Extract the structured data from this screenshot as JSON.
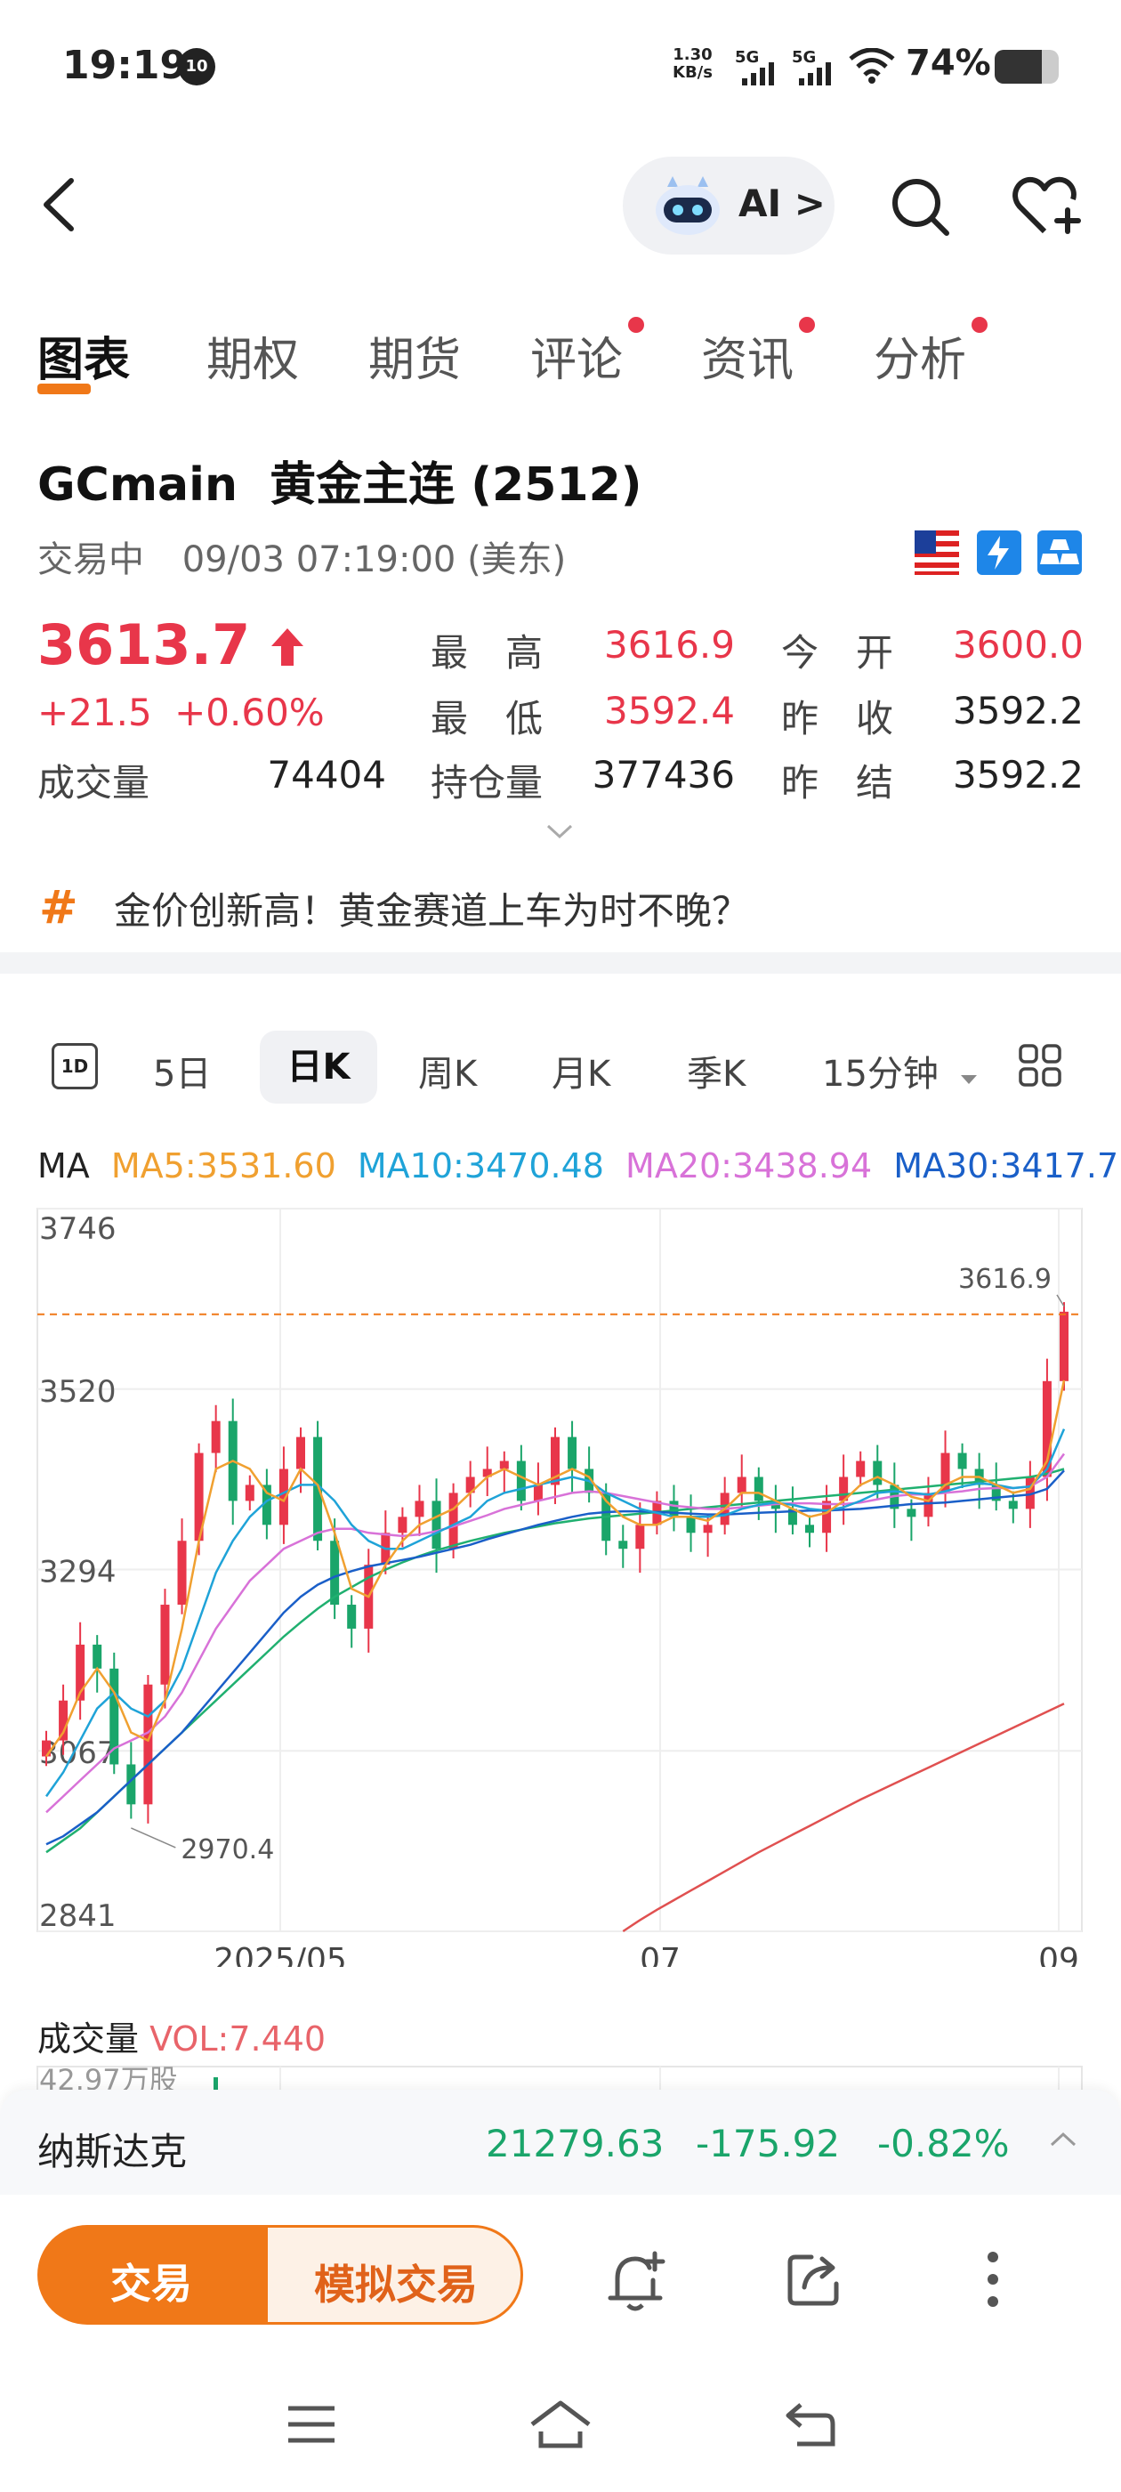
{
  "status_bar": {
    "time": "19:19",
    "notification_count": "10",
    "net_speed_value": "1.30",
    "net_speed_unit": "KB/s",
    "signal1": "5G",
    "signal2": "5G",
    "battery": "74%",
    "battery_level": 0.74
  },
  "header": {
    "ai_label": "AI >"
  },
  "tabs": [
    {
      "label": "图表",
      "active": true,
      "dot": false
    },
    {
      "label": "期权",
      "active": false,
      "dot": false
    },
    {
      "label": "期货",
      "active": false,
      "dot": false
    },
    {
      "label": "评论",
      "active": false,
      "dot": true
    },
    {
      "label": "资讯",
      "active": false,
      "dot": true
    },
    {
      "label": "分析",
      "active": false,
      "dot": true
    }
  ],
  "quote": {
    "title": "GCmain  黄金主连 (2512)",
    "status": "交易中",
    "datetime": "09/03 07:19:00 (美东)",
    "price": "3613.7",
    "change": "+21.5",
    "change_pct": "+0.60%",
    "volume_label": "成交量",
    "volume": "74404",
    "high_label": "最　高",
    "high": "3616.9",
    "low_label": "最　低",
    "low": "3592.4",
    "oi_label": "持仓量",
    "oi": "377436",
    "open_label": "今　开",
    "open": "3600.0",
    "prev_close_label": "昨　收",
    "prev_close": "3592.2",
    "prev_settle_label": "昨　结",
    "prev_settle": "3592.2"
  },
  "news": {
    "text": "金价创新高！黄金赛道上车为时不晚？"
  },
  "periods": [
    "5日",
    "日K",
    "周K",
    "月K",
    "季K",
    "15分钟"
  ],
  "active_period": "日K",
  "ma": {
    "label": "MA",
    "ma5": "MA5:3531.60",
    "ma10": "MA10:3470.48",
    "ma20": "MA20:3438.94",
    "ma30": "MA30:3417.7..."
  },
  "colors": {
    "up": "#e8364a",
    "down": "#1aa56a",
    "accent": "#f07818",
    "ma5": "#f0a030",
    "ma10": "#1fa3d8",
    "ma20": "#d872d8",
    "ma30": "#1a5fc8",
    "ma60": "#20b070",
    "ma120": "#e05050"
  },
  "chart_data": {
    "type": "candlestick",
    "y_ticks": [
      "3746",
      "3520",
      "3294",
      "3067",
      "2841"
    ],
    "x_ticks": [
      "2025/05",
      "07",
      "09"
    ],
    "ylim": [
      2841,
      3746
    ],
    "high_marker": "3616.9",
    "low_marker": "2970.4",
    "current_price": 3613.7,
    "close_path": [
      3080,
      3130,
      3200,
      3170,
      3050,
      3000,
      3150,
      3250,
      3330,
      3440,
      3480,
      3380,
      3400,
      3350,
      3420,
      3460,
      3330,
      3250,
      3220,
      3300,
      3340,
      3360,
      3380,
      3320,
      3390,
      3410,
      3420,
      3430,
      3380,
      3400,
      3460,
      3420,
      3390,
      3330,
      3320,
      3350,
      3380,
      3360,
      3340,
      3350,
      3390,
      3410,
      3380,
      3370,
      3350,
      3340,
      3380,
      3410,
      3430,
      3400,
      3370,
      3360,
      3390,
      3440,
      3420,
      3400,
      3380,
      3370,
      3410,
      3530,
      3616.9
    ],
    "ma_lines": {
      "ma5": [
        3060,
        3090,
        3140,
        3170,
        3140,
        3090,
        3080,
        3130,
        3220,
        3330,
        3420,
        3430,
        3420,
        3390,
        3380,
        3420,
        3400,
        3340,
        3270,
        3260,
        3300,
        3330,
        3350,
        3360,
        3370,
        3390,
        3410,
        3420,
        3410,
        3400,
        3410,
        3420,
        3410,
        3380,
        3360,
        3350,
        3350,
        3360,
        3360,
        3355,
        3370,
        3390,
        3390,
        3380,
        3370,
        3360,
        3365,
        3380,
        3400,
        3410,
        3400,
        3385,
        3380,
        3400,
        3410,
        3410,
        3400,
        3390,
        3395,
        3430,
        3531
      ],
      "ma10": [
        3010,
        3040,
        3080,
        3120,
        3140,
        3120,
        3110,
        3130,
        3170,
        3230,
        3290,
        3330,
        3360,
        3380,
        3390,
        3400,
        3400,
        3380,
        3350,
        3330,
        3320,
        3320,
        3330,
        3340,
        3350,
        3360,
        3380,
        3390,
        3395,
        3400,
        3405,
        3410,
        3405,
        3390,
        3380,
        3370,
        3365,
        3360,
        3360,
        3360,
        3362,
        3370,
        3375,
        3378,
        3375,
        3370,
        3368,
        3372,
        3380,
        3390,
        3392,
        3390,
        3388,
        3392,
        3398,
        3402,
        3400,
        3396,
        3398,
        3420,
        3470
      ],
      "ma20": [
        2990,
        3010,
        3030,
        3050,
        3070,
        3080,
        3090,
        3110,
        3140,
        3180,
        3220,
        3250,
        3280,
        3300,
        3320,
        3330,
        3340,
        3345,
        3345,
        3340,
        3338,
        3336,
        3338,
        3342,
        3348,
        3355,
        3362,
        3370,
        3375,
        3380,
        3385,
        3390,
        3392,
        3390,
        3386,
        3382,
        3378,
        3374,
        3372,
        3370,
        3370,
        3372,
        3374,
        3376,
        3377,
        3377,
        3376,
        3376,
        3378,
        3382,
        3386,
        3388,
        3388,
        3390,
        3392,
        3395,
        3396,
        3396,
        3398,
        3410,
        3439
      ],
      "ma30": [
        2950,
        2960,
        2975,
        2990,
        3010,
        3030,
        3050,
        3070,
        3090,
        3115,
        3140,
        3165,
        3190,
        3215,
        3240,
        3260,
        3275,
        3285,
        3292,
        3298,
        3302,
        3306,
        3310,
        3315,
        3320,
        3325,
        3332,
        3338,
        3344,
        3350,
        3355,
        3360,
        3364,
        3366,
        3367,
        3367,
        3366,
        3365,
        3364,
        3363,
        3363,
        3364,
        3365,
        3366,
        3367,
        3368,
        3368,
        3369,
        3370,
        3372,
        3374,
        3376,
        3377,
        3378,
        3380,
        3382,
        3384,
        3386,
        3388,
        3395,
        3418
      ],
      "ma60": [
        2940,
        2955,
        2970,
        2990,
        3010,
        3030,
        3050,
        3070,
        3090,
        3110,
        3130,
        3150,
        3170,
        3190,
        3210,
        3228,
        3245,
        3260,
        3272,
        3284,
        3294,
        3303,
        3311,
        3318,
        3324,
        3330,
        3335,
        3340,
        3344,
        3348,
        3352,
        3355,
        3358,
        3360,
        3362,
        3364,
        3366,
        3368,
        3370,
        3372,
        3374,
        3376,
        3378,
        3380,
        3382,
        3384,
        3386,
        3388,
        3390,
        3392,
        3394,
        3396,
        3398,
        3400,
        3402,
        3404,
        3406,
        3408,
        3410,
        3414,
        3420
      ],
      "ma120_start_index": 34,
      "ma120": [
        2841,
        2855,
        2868,
        2880,
        2892,
        2904,
        2916,
        2928,
        2940,
        2951,
        2962,
        2973,
        2984,
        2995,
        3006,
        3016,
        3026,
        3036,
        3046,
        3056,
        3066,
        3076,
        3086,
        3096,
        3106,
        3116,
        3126
      ]
    }
  },
  "volume": {
    "title": "成交量",
    "vol_label": "VOL:7.440",
    "top_label": "42.97万股"
  },
  "index_bar": {
    "name": "纳斯达克",
    "value": "21279.63",
    "change": "-175.92",
    "change_pct": "-0.82%"
  },
  "bottom_bar": {
    "trade_label": "交易",
    "sim_label": "模拟交易"
  }
}
